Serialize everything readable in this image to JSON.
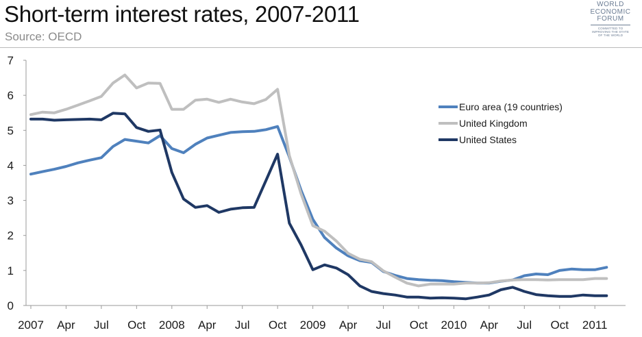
{
  "header": {
    "title": "Short-term interest rates, 2007-2011",
    "subtitle": "Source: OECD"
  },
  "logo": {
    "line1": "WORLD",
    "line2": "ECONOMIC",
    "line3": "FORUM",
    "tagline1": "COMMITTED TO",
    "tagline2": "IMPROVING THE STATE",
    "tagline3": "OF THE WORLD"
  },
  "chart_data": {
    "type": "line",
    "title": "Short-term interest rates, 2007-2011",
    "subtitle": "Source: OECD",
    "xlabel": "",
    "ylabel": "",
    "ylim": [
      0,
      7
    ],
    "yticks": [
      0,
      1,
      2,
      3,
      4,
      5,
      6,
      7
    ],
    "x": [
      "2007-01",
      "2007-02",
      "2007-03",
      "2007-04",
      "2007-05",
      "2007-06",
      "2007-07",
      "2007-08",
      "2007-09",
      "2007-10",
      "2007-11",
      "2007-12",
      "2008-01",
      "2008-02",
      "2008-03",
      "2008-04",
      "2008-05",
      "2008-06",
      "2008-07",
      "2008-08",
      "2008-09",
      "2008-10",
      "2008-11",
      "2008-12",
      "2009-01",
      "2009-02",
      "2009-03",
      "2009-04",
      "2009-05",
      "2009-06",
      "2009-07",
      "2009-08",
      "2009-09",
      "2009-10",
      "2009-11",
      "2009-12",
      "2010-01",
      "2010-02",
      "2010-03",
      "2010-04",
      "2010-05",
      "2010-06",
      "2010-07",
      "2010-08",
      "2010-09",
      "2010-10",
      "2010-11",
      "2010-12",
      "2011-01",
      "2011-02"
    ],
    "x_tick_labels": [
      {
        "index": 0,
        "label": "2007"
      },
      {
        "index": 3,
        "label": "Apr"
      },
      {
        "index": 6,
        "label": "Jul"
      },
      {
        "index": 9,
        "label": "Oct"
      },
      {
        "index": 12,
        "label": "2008"
      },
      {
        "index": 15,
        "label": "Apr"
      },
      {
        "index": 18,
        "label": "Jul"
      },
      {
        "index": 21,
        "label": "Oct"
      },
      {
        "index": 24,
        "label": "2009"
      },
      {
        "index": 27,
        "label": "Apr"
      },
      {
        "index": 30,
        "label": "Jul"
      },
      {
        "index": 33,
        "label": "Oct"
      },
      {
        "index": 36,
        "label": "2010"
      },
      {
        "index": 39,
        "label": "Apr"
      },
      {
        "index": 42,
        "label": "Jul"
      },
      {
        "index": 45,
        "label": "Oct"
      },
      {
        "index": 48,
        "label": "2011"
      }
    ],
    "legend_position": "top-right",
    "grid": false,
    "series": [
      {
        "name": "Euro area (19 countries)",
        "color": "#4f81bd",
        "values": [
          3.75,
          3.82,
          3.89,
          3.97,
          4.07,
          4.15,
          4.22,
          4.54,
          4.74,
          4.69,
          4.64,
          4.85,
          4.48,
          4.36,
          4.6,
          4.78,
          4.86,
          4.94,
          4.96,
          4.97,
          5.02,
          5.11,
          4.24,
          3.29,
          2.46,
          1.94,
          1.64,
          1.42,
          1.28,
          1.23,
          0.97,
          0.86,
          0.77,
          0.74,
          0.72,
          0.71,
          0.68,
          0.66,
          0.64,
          0.64,
          0.69,
          0.73,
          0.85,
          0.9,
          0.88,
          1.0,
          1.04,
          1.02,
          1.02,
          1.09
        ]
      },
      {
        "name": "United Kingdom",
        "color": "#bfbfbf",
        "values": [
          5.45,
          5.52,
          5.5,
          5.6,
          5.72,
          5.84,
          5.97,
          6.35,
          6.58,
          6.21,
          6.35,
          6.34,
          5.6,
          5.6,
          5.86,
          5.89,
          5.8,
          5.89,
          5.81,
          5.76,
          5.88,
          6.17,
          4.28,
          3.19,
          2.28,
          2.12,
          1.84,
          1.49,
          1.32,
          1.25,
          0.99,
          0.81,
          0.64,
          0.56,
          0.61,
          0.61,
          0.61,
          0.64,
          0.64,
          0.65,
          0.7,
          0.73,
          0.74,
          0.74,
          0.73,
          0.74,
          0.74,
          0.74,
          0.77,
          0.77
        ]
      },
      {
        "name": "United States",
        "color": "#1f3864",
        "values": [
          5.32,
          5.32,
          5.29,
          5.3,
          5.31,
          5.32,
          5.3,
          5.49,
          5.47,
          5.08,
          4.97,
          5.01,
          3.8,
          3.04,
          2.8,
          2.85,
          2.66,
          2.75,
          2.79,
          2.8,
          3.56,
          4.32,
          2.35,
          1.73,
          1.02,
          1.16,
          1.07,
          0.88,
          0.56,
          0.4,
          0.34,
          0.3,
          0.24,
          0.24,
          0.21,
          0.22,
          0.21,
          0.19,
          0.24,
          0.3,
          0.45,
          0.52,
          0.4,
          0.31,
          0.28,
          0.26,
          0.26,
          0.3,
          0.28,
          0.28
        ]
      }
    ]
  }
}
